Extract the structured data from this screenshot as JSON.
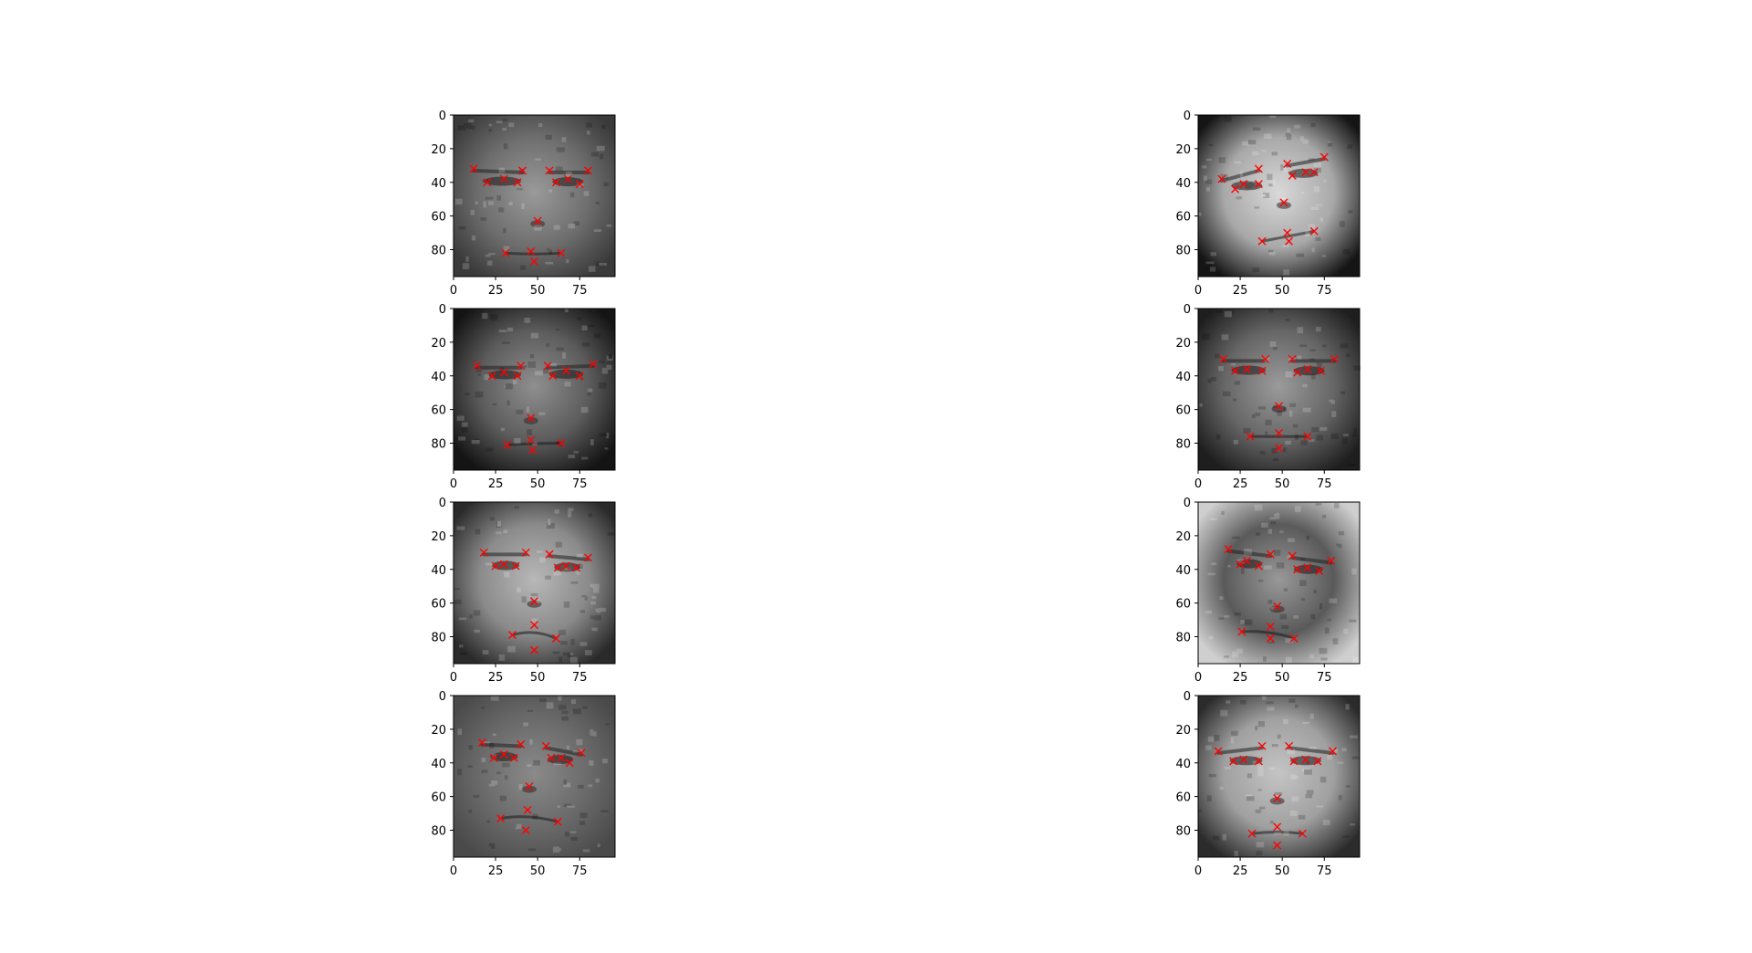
{
  "figure": {
    "background": "#ffffff",
    "marker_color": "#ff0000",
    "marker_symbol": "x"
  },
  "chart_data": [
    {
      "type": "scatter",
      "image": "grayscale face photo, 96x96",
      "xlim": [
        0,
        96
      ],
      "ylim": [
        96,
        0
      ],
      "xticks": [
        0,
        25,
        50,
        75
      ],
      "yticks": [
        0,
        20,
        40,
        60,
        80
      ],
      "points": [
        [
          12,
          32
        ],
        [
          20,
          40
        ],
        [
          30,
          38
        ],
        [
          38,
          40
        ],
        [
          41,
          33
        ],
        [
          57,
          33
        ],
        [
          61,
          40
        ],
        [
          68,
          38
        ],
        [
          75,
          41
        ],
        [
          80,
          33
        ],
        [
          50,
          63
        ],
        [
          31,
          82
        ],
        [
          46,
          81
        ],
        [
          48,
          87
        ],
        [
          64,
          82
        ]
      ]
    },
    {
      "type": "scatter",
      "image": "grayscale face photo, 96x96",
      "xlim": [
        0,
        96
      ],
      "ylim": [
        96,
        0
      ],
      "xticks": [
        0,
        25,
        50,
        75
      ],
      "yticks": [
        0,
        20,
        40,
        60,
        80
      ],
      "points": [
        [
          14,
          34
        ],
        [
          23,
          40
        ],
        [
          30,
          38
        ],
        [
          38,
          40
        ],
        [
          40,
          34
        ],
        [
          56,
          34
        ],
        [
          59,
          40
        ],
        [
          67,
          37
        ],
        [
          75,
          40
        ],
        [
          83,
          33
        ],
        [
          46,
          65
        ],
        [
          32,
          81
        ],
        [
          46,
          78
        ],
        [
          47,
          84
        ],
        [
          64,
          80
        ]
      ]
    },
    {
      "type": "scatter",
      "image": "grayscale face photo, 96x96",
      "xlim": [
        0,
        96
      ],
      "ylim": [
        96,
        0
      ],
      "xticks": [
        0,
        25,
        50,
        75
      ],
      "yticks": [
        0,
        20,
        40,
        60,
        80
      ],
      "points": [
        [
          18,
          30
        ],
        [
          25,
          38
        ],
        [
          30,
          37
        ],
        [
          37,
          38
        ],
        [
          43,
          30
        ],
        [
          57,
          31
        ],
        [
          62,
          39
        ],
        [
          67,
          38
        ],
        [
          73,
          39
        ],
        [
          80,
          33
        ],
        [
          48,
          59
        ],
        [
          35,
          79
        ],
        [
          48,
          73
        ],
        [
          48,
          88
        ],
        [
          61,
          81
        ]
      ]
    },
    {
      "type": "scatter",
      "image": "grayscale face photo, 96x96",
      "xlim": [
        0,
        96
      ],
      "ylim": [
        96,
        0
      ],
      "xticks": [
        0,
        25,
        50,
        75
      ],
      "yticks": [
        0,
        20,
        40,
        60,
        80
      ],
      "points": [
        [
          17,
          28
        ],
        [
          24,
          37
        ],
        [
          30,
          35
        ],
        [
          36,
          37
        ],
        [
          40,
          29
        ],
        [
          55,
          30
        ],
        [
          58,
          37
        ],
        [
          64,
          37
        ],
        [
          69,
          40
        ],
        [
          76,
          34
        ],
        [
          45,
          54
        ],
        [
          28,
          73
        ],
        [
          44,
          68
        ],
        [
          43,
          80
        ],
        [
          62,
          75
        ]
      ]
    },
    {
      "type": "scatter",
      "image": "grayscale face photo, 96x96",
      "xlim": [
        0,
        96
      ],
      "ylim": [
        96,
        0
      ],
      "xticks": [
        0,
        25,
        50,
        75
      ],
      "yticks": [
        0,
        20,
        40,
        60,
        80
      ],
      "points": [
        [
          14,
          38
        ],
        [
          22,
          44
        ],
        [
          27,
          41
        ],
        [
          36,
          41
        ],
        [
          36,
          32
        ],
        [
          53,
          29
        ],
        [
          56,
          36
        ],
        [
          64,
          34
        ],
        [
          69,
          34
        ],
        [
          75,
          25
        ],
        [
          51,
          52
        ],
        [
          38,
          75
        ],
        [
          53,
          70
        ],
        [
          54,
          75
        ],
        [
          69,
          69
        ]
      ]
    },
    {
      "type": "scatter",
      "image": "grayscale face photo, 96x96",
      "xlim": [
        0,
        96
      ],
      "ylim": [
        96,
        0
      ],
      "xticks": [
        0,
        25,
        50,
        75
      ],
      "yticks": [
        0,
        20,
        40,
        60,
        80
      ],
      "points": [
        [
          15,
          30
        ],
        [
          22,
          37
        ],
        [
          29,
          36
        ],
        [
          38,
          37
        ],
        [
          40,
          30
        ],
        [
          56,
          30
        ],
        [
          59,
          38
        ],
        [
          65,
          36
        ],
        [
          73,
          37
        ],
        [
          81,
          30
        ],
        [
          48,
          58
        ],
        [
          31,
          76
        ],
        [
          48,
          74
        ],
        [
          48,
          83
        ],
        [
          65,
          76
        ]
      ]
    },
    {
      "type": "scatter",
      "image": "grayscale face photo, 96x96",
      "xlim": [
        0,
        96
      ],
      "ylim": [
        96,
        0
      ],
      "xticks": [
        0,
        25,
        50,
        75
      ],
      "yticks": [
        0,
        20,
        40,
        60,
        80
      ],
      "points": [
        [
          18,
          28
        ],
        [
          25,
          37
        ],
        [
          29,
          35
        ],
        [
          36,
          38
        ],
        [
          43,
          31
        ],
        [
          56,
          32
        ],
        [
          59,
          40
        ],
        [
          65,
          39
        ],
        [
          72,
          41
        ],
        [
          79,
          35
        ],
        [
          47,
          62
        ],
        [
          26,
          77
        ],
        [
          43,
          74
        ],
        [
          43,
          81
        ],
        [
          57,
          81
        ]
      ]
    },
    {
      "type": "scatter",
      "image": "grayscale face photo, 96x96",
      "xlim": [
        0,
        96
      ],
      "ylim": [
        96,
        0
      ],
      "xticks": [
        0,
        25,
        50,
        75
      ],
      "yticks": [
        0,
        20,
        40,
        60,
        80
      ],
      "points": [
        [
          12,
          33
        ],
        [
          21,
          39
        ],
        [
          27,
          38
        ],
        [
          36,
          39
        ],
        [
          38,
          30
        ],
        [
          54,
          30
        ],
        [
          57,
          39
        ],
        [
          64,
          38
        ],
        [
          71,
          39
        ],
        [
          80,
          33
        ],
        [
          47,
          61
        ],
        [
          32,
          82
        ],
        [
          47,
          78
        ],
        [
          47,
          89
        ],
        [
          62,
          82
        ]
      ]
    }
  ]
}
